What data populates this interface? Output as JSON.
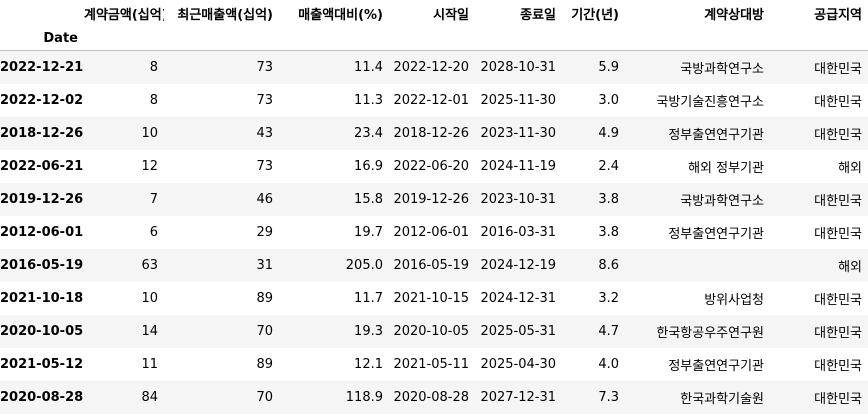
{
  "table": {
    "index_name": "Date",
    "columns": [
      "계약금액(십억)",
      "최근매출액(십억)",
      "매출액대비(%)",
      "시작일",
      "종료일",
      "기간(년)",
      "계약상대방",
      "공급지역"
    ],
    "rows": [
      {
        "index": "2022-12-21",
        "cells": [
          "8",
          "73",
          "11.4",
          "2022-12-20",
          "2028-10-31",
          "5.9",
          "국방과학연구소",
          "대한민국"
        ]
      },
      {
        "index": "2022-12-02",
        "cells": [
          "8",
          "73",
          "11.3",
          "2022-12-01",
          "2025-11-30",
          "3.0",
          "국방기술진흥연구소",
          "대한민국"
        ]
      },
      {
        "index": "2018-12-26",
        "cells": [
          "10",
          "43",
          "23.4",
          "2018-12-26",
          "2023-11-30",
          "4.9",
          "정부출연연구기관",
          "대한민국"
        ]
      },
      {
        "index": "2022-06-21",
        "cells": [
          "12",
          "73",
          "16.9",
          "2022-06-20",
          "2024-11-19",
          "2.4",
          "해외 정부기관",
          "해외"
        ]
      },
      {
        "index": "2019-12-26",
        "cells": [
          "7",
          "46",
          "15.8",
          "2019-12-26",
          "2023-10-31",
          "3.8",
          "국방과학연구소",
          "대한민국"
        ]
      },
      {
        "index": "2012-06-01",
        "cells": [
          "6",
          "29",
          "19.7",
          "2012-06-01",
          "2016-03-31",
          "3.8",
          "정부출연연구기관",
          "대한민국"
        ]
      },
      {
        "index": "2016-05-19",
        "cells": [
          "63",
          "31",
          "205.0",
          "2016-05-19",
          "2024-12-19",
          "8.6",
          "",
          "해외"
        ]
      },
      {
        "index": "2021-10-18",
        "cells": [
          "10",
          "89",
          "11.7",
          "2021-10-15",
          "2024-12-31",
          "3.2",
          "방위사업청",
          "대한민국"
        ]
      },
      {
        "index": "2020-10-05",
        "cells": [
          "14",
          "70",
          "19.3",
          "2020-10-05",
          "2025-05-31",
          "4.7",
          "한국항공우주연구원",
          "대한민국"
        ]
      },
      {
        "index": "2021-05-12",
        "cells": [
          "11",
          "89",
          "12.1",
          "2021-05-11",
          "2025-04-30",
          "4.0",
          "정부출연연구기관",
          "대한민국"
        ]
      },
      {
        "index": "2020-08-28",
        "cells": [
          "84",
          "70",
          "118.9",
          "2020-08-28",
          "2027-12-31",
          "7.3",
          "한국과학기술원",
          "대한민국"
        ]
      }
    ]
  }
}
